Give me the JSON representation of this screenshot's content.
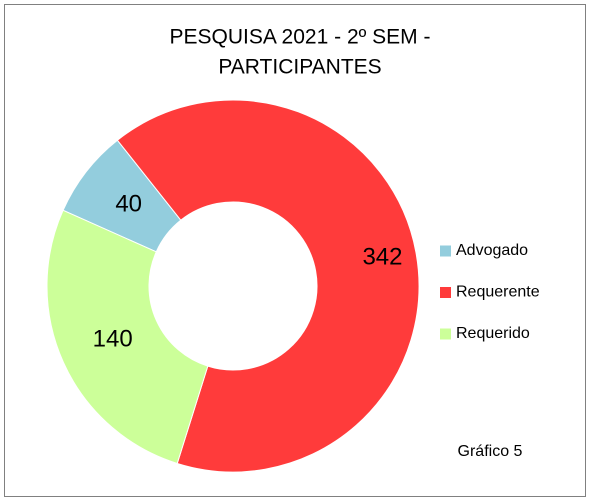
{
  "chart_data": {
    "type": "donut",
    "title": [
      "PESQUISA 2021 - 2º SEM -",
      "PARTICIPANTES"
    ],
    "categories": [
      "Advogado",
      "Requerente",
      "Requerido"
    ],
    "values": [
      40,
      342,
      140
    ],
    "colors": [
      "#93cddd",
      "#ff3b3b",
      "#ccff99"
    ],
    "legend": "right",
    "annotation": "Gráfico 5"
  }
}
